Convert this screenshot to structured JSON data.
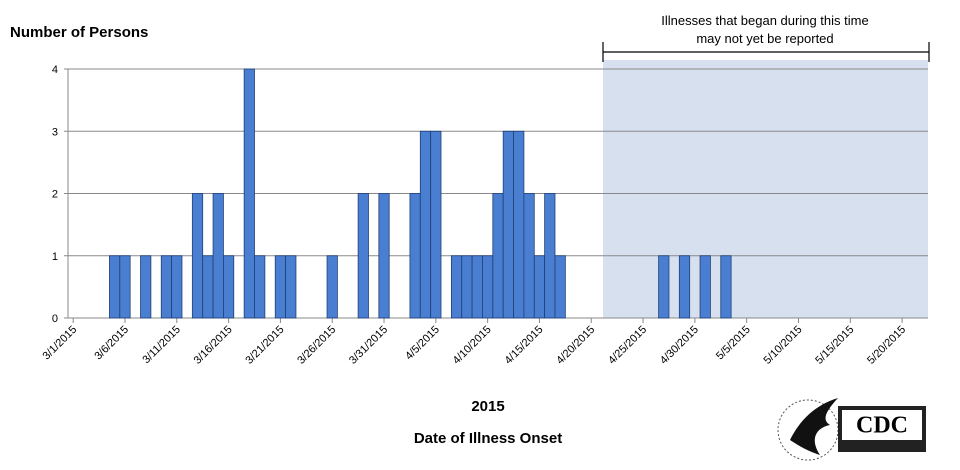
{
  "chart_data": {
    "type": "bar",
    "y_label": "Number of Persons",
    "x_label": "Date of Illness Onset",
    "x_sublabel": "2015",
    "annotation": [
      "Illnesses that began during this time",
      "may not yet be reported"
    ],
    "logo_text": "CDC",
    "color": "#4a7ed0",
    "grid": true,
    "ylim": [
      0,
      4
    ],
    "yticks": [
      0,
      1,
      2,
      3,
      4
    ],
    "categories": [
      "3/1/2015",
      null,
      null,
      null,
      null,
      "3/6/2015",
      null,
      null,
      null,
      null,
      "3/11/2015",
      null,
      null,
      null,
      null,
      "3/16/2015",
      null,
      null,
      null,
      null,
      "3/21/2015",
      null,
      null,
      null,
      null,
      "3/26/2015",
      null,
      null,
      null,
      null,
      "3/31/2015",
      null,
      null,
      null,
      null,
      "4/5/2015",
      null,
      null,
      null,
      null,
      "4/10/2015",
      null,
      null,
      null,
      null,
      "4/15/2015",
      null,
      null,
      null,
      null,
      "4/20/2015",
      null,
      null,
      null,
      null,
      "4/25/2015",
      null,
      null,
      null,
      null,
      "4/30/2015",
      null,
      null,
      null,
      null,
      "5/5/2015",
      null,
      null,
      null,
      null,
      "5/10/2015",
      null,
      null,
      null,
      null,
      "5/15/2015",
      null,
      null,
      null,
      null,
      "5/20/2015",
      null,
      null
    ],
    "values": [
      0,
      0,
      0,
      0,
      1,
      1,
      0,
      1,
      0,
      1,
      1,
      0,
      2,
      1,
      2,
      1,
      0,
      4,
      1,
      0,
      1,
      1,
      0,
      0,
      0,
      1,
      0,
      0,
      2,
      0,
      2,
      0,
      0,
      2,
      3,
      3,
      0,
      1,
      1,
      1,
      1,
      2,
      3,
      3,
      2,
      1,
      2,
      1,
      0,
      0,
      0,
      0,
      0,
      0,
      0,
      0,
      0,
      1,
      0,
      1,
      0,
      1,
      0,
      1,
      0,
      0,
      0,
      0,
      0,
      0,
      0,
      0,
      0,
      0,
      0,
      0,
      0,
      0,
      0,
      0,
      0,
      0,
      0
    ]
  }
}
